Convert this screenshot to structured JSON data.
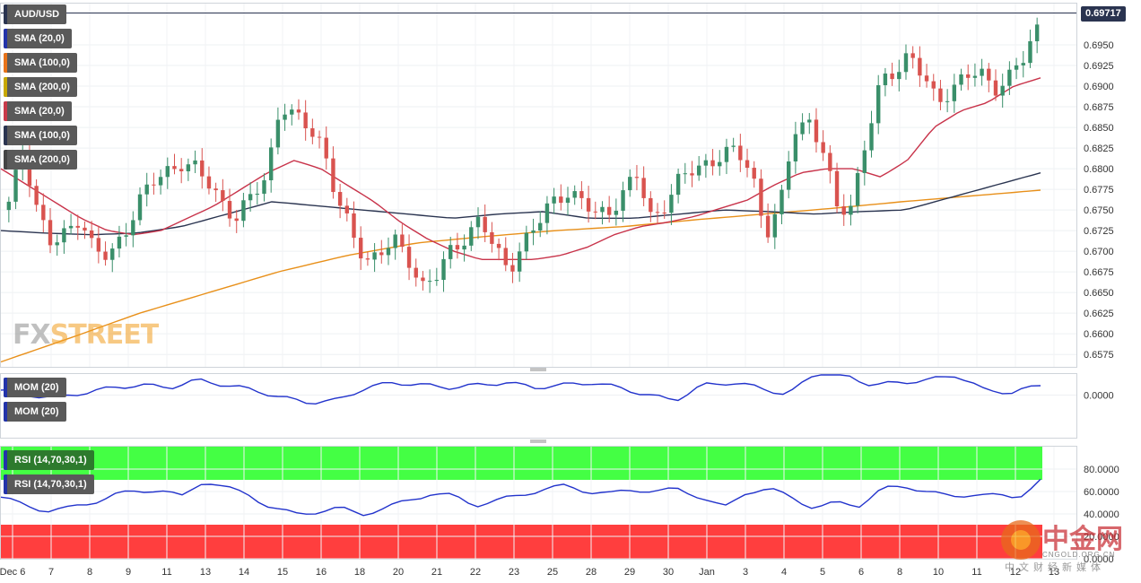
{
  "chart_data": {
    "type": "candlestick",
    "symbol": "AUD/USD",
    "last_price": "0.69717",
    "x_tick_labels": [
      "Dec 6",
      "7",
      "8",
      "9",
      "11",
      "13",
      "14",
      "15",
      "16",
      "18",
      "20",
      "21",
      "22",
      "23",
      "25",
      "28",
      "29",
      "30",
      "Jan",
      "3",
      "4",
      "5",
      "6",
      "8",
      "10",
      "11",
      "12",
      "13"
    ],
    "price_axis": {
      "ylim": [
        0.656,
        0.7
      ],
      "ticks": [
        "0.6950",
        "0.6925",
        "0.6900",
        "0.6875",
        "0.6850",
        "0.6825",
        "0.6800",
        "0.6775",
        "0.6750",
        "0.6725",
        "0.6700",
        "0.6675",
        "0.6650",
        "0.6625",
        "0.6600",
        "0.6575"
      ]
    },
    "mom_axis": {
      "ticks": [
        "0.0000"
      ]
    },
    "rsi_axis": {
      "ylim": [
        0,
        100
      ],
      "ticks": [
        "80.0000",
        "60.0000",
        "40.0000",
        "20.0000",
        "0.0000"
      ],
      "overbought": 70,
      "oversold": 30
    },
    "legends": {
      "price": [
        {
          "label": "AUD/USD",
          "color": "#2a3450"
        },
        {
          "label": "SMA (20,0)",
          "color": "#2233aa"
        },
        {
          "label": "SMA (100,0)",
          "color": "#e8731a"
        },
        {
          "label": "SMA (200,0)",
          "color": "#c8a800"
        },
        {
          "label": "SMA (20,0)",
          "color": "#c83a4a"
        },
        {
          "label": "SMA (100,0)",
          "color": "#2a3450"
        },
        {
          "label": "SMA (200,0)",
          "color": "#444444"
        }
      ],
      "mom": [
        {
          "label": "MOM (20)",
          "color": "#2233aa"
        },
        {
          "label": "MOM (20)",
          "color": "#2233aa"
        }
      ],
      "rsi": [
        {
          "label": "RSI (14,70,30,1)",
          "color": "#2233aa"
        },
        {
          "label": "RSI (14,70,30,1)",
          "color": "#2233aa"
        }
      ]
    },
    "colors": {
      "bull": "#3a8f6a",
      "bear": "#d9534f",
      "sma20": "#c8334a",
      "sma100": "#2a3450",
      "sma200": "#e8901a",
      "mom": "#2233cc",
      "rsi": "#2233cc",
      "rsi_overbought_zone": "#44ff44",
      "rsi_oversold_zone": "#ff3e3e"
    },
    "price_series_key": [
      0.6755,
      0.6823,
      0.6752,
      0.6705,
      0.672,
      0.6745,
      0.67,
      0.669,
      0.672,
      0.676,
      0.678,
      0.6795,
      0.681,
      0.68,
      0.678,
      0.676,
      0.674,
      0.6765,
      0.679,
      0.688,
      0.686,
      0.685,
      0.683,
      0.676,
      0.672,
      0.669,
      0.67,
      0.671,
      0.669,
      0.666,
      0.667,
      0.67,
      0.672,
      0.674,
      0.67,
      0.668,
      0.671,
      0.673,
      0.676,
      0.6775,
      0.676,
      0.6745,
      0.675,
      0.677,
      0.679,
      0.674,
      0.676,
      0.6785,
      0.68,
      0.681,
      0.6815,
      0.682,
      0.68,
      0.672,
      0.675,
      0.685,
      0.686,
      0.682,
      0.675,
      0.676,
      0.683,
      0.69,
      0.692,
      0.694,
      0.691,
      0.688,
      0.69,
      0.691,
      0.6915,
      0.69,
      0.691,
      0.693,
      0.697
    ],
    "sma20_key": [
      0.68,
      0.678,
      0.676,
      0.674,
      0.6725,
      0.672,
      0.6725,
      0.674,
      0.6755,
      0.6775,
      0.6795,
      0.681,
      0.68,
      0.678,
      0.676,
      0.6735,
      0.6715,
      0.67,
      0.669,
      0.669,
      0.669,
      0.6695,
      0.6705,
      0.672,
      0.673,
      0.6735,
      0.6742,
      0.6752,
      0.6762,
      0.678,
      0.6795,
      0.68,
      0.68,
      0.679,
      0.681,
      0.685,
      0.687,
      0.688,
      0.69,
      0.691
    ],
    "sma100_key": [
      0.6725,
      0.6722,
      0.672,
      0.6722,
      0.673,
      0.6745,
      0.676,
      0.6755,
      0.675,
      0.6745,
      0.674,
      0.6745,
      0.6748,
      0.674,
      0.674,
      0.6745,
      0.675,
      0.6748,
      0.6745,
      0.6748,
      0.675,
      0.6765,
      0.678,
      0.6795
    ],
    "sma200_key": [
      0.6566,
      0.6595,
      0.6625,
      0.665,
      0.6675,
      0.6695,
      0.671,
      0.6718,
      0.6725,
      0.673,
      0.6738,
      0.6745,
      0.6752,
      0.676,
      0.6767,
      0.6774
    ],
    "mom_key": [
      0.2,
      0.0,
      -0.1,
      0.1,
      0.3,
      0.4,
      0.3,
      0.6,
      0.4,
      0.2,
      -0.1,
      -0.3,
      -0.2,
      0.3,
      0.5,
      0.4,
      0.3,
      0.4,
      0.5,
      0.3,
      0.4,
      0.5,
      0.3,
      0.0,
      -0.2,
      0.4,
      0.5,
      0.3,
      0.0,
      0.9,
      0.8,
      0.4,
      0.5,
      0.6,
      0.8,
      0.2,
      0.1,
      0.4
    ],
    "rsi_key": [
      55,
      48,
      43,
      45,
      50,
      57,
      60,
      62,
      55,
      70,
      63,
      57,
      45,
      40,
      42,
      45,
      40,
      45,
      52,
      58,
      56,
      48,
      52,
      57,
      62,
      65,
      60,
      58,
      62,
      60,
      62,
      55,
      45,
      60,
      62,
      55,
      45,
      50,
      48,
      62,
      65,
      60,
      55,
      58,
      56,
      55,
      70
    ]
  }
}
